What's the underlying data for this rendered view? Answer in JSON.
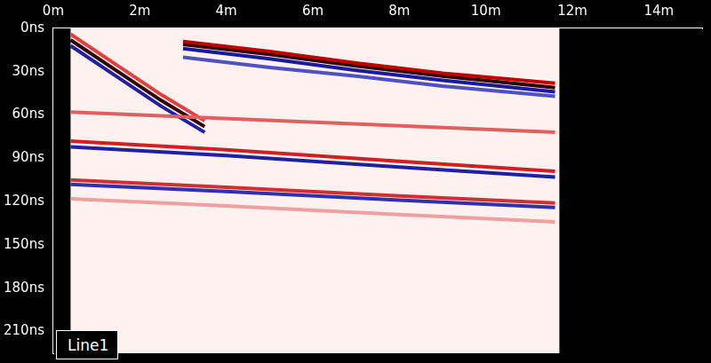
{
  "chart_data": {
    "type": "line",
    "annotation": "Line1",
    "grid": false,
    "xlim": [
      0,
      15
    ],
    "xticks": [
      {
        "value": 0,
        "label": "0m"
      },
      {
        "value": 2,
        "label": "2m"
      },
      {
        "value": 4,
        "label": "4m"
      },
      {
        "value": 6,
        "label": "6m"
      },
      {
        "value": 8,
        "label": "8m"
      },
      {
        "value": 10,
        "label": "10m"
      },
      {
        "value": 12,
        "label": "12m"
      },
      {
        "value": 14,
        "label": "14m"
      }
    ],
    "ylim": [
      0,
      225
    ],
    "yticks": [
      {
        "value": 0,
        "label": "0ns"
      },
      {
        "value": 30,
        "label": "30ns"
      },
      {
        "value": 60,
        "label": "60ns"
      },
      {
        "value": 90,
        "label": "90ns"
      },
      {
        "value": 120,
        "label": "120ns"
      },
      {
        "value": 150,
        "label": "150ns"
      },
      {
        "value": 180,
        "label": "180ns"
      },
      {
        "value": 210,
        "label": "210ns"
      }
    ],
    "trace_range": [
      0.4,
      11.7
    ],
    "series": [
      {
        "color": "#e06060",
        "x": [
          0.4,
          11.6
        ],
        "values": [
          58,
          72
        ]
      },
      {
        "color": "#f0a0a0",
        "x": [
          0.4,
          4,
          8,
          11.6
        ],
        "values": [
          118,
          123,
          129,
          134
        ]
      },
      {
        "color": "#d03030",
        "x": [
          0.4,
          4,
          8,
          11.6
        ],
        "values": [
          105,
          110,
          116,
          121
        ]
      },
      {
        "color": "#3030b0",
        "x": [
          0.4,
          4,
          8,
          11.6
        ],
        "values": [
          108,
          113,
          119,
          124
        ]
      },
      {
        "color": "#d02020",
        "x": [
          0.4,
          4,
          8,
          11.6
        ],
        "values": [
          78,
          84,
          92,
          99
        ]
      },
      {
        "color": "#2020a0",
        "x": [
          0.4,
          4,
          8,
          11.6
        ],
        "values": [
          82,
          88,
          96,
          103
        ]
      },
      {
        "color": "#5050c0",
        "x": [
          3.0,
          5,
          7,
          9,
          11.6
        ],
        "values": [
          20,
          27,
          33,
          40,
          47
        ]
      },
      {
        "color": "#c00000",
        "x": [
          3.0,
          5,
          7,
          9,
          11.6
        ],
        "values": [
          9,
          16,
          24,
          31,
          38
        ]
      },
      {
        "color": "#300000",
        "x": [
          3.0,
          5,
          7,
          9,
          11.6
        ],
        "values": [
          11,
          18,
          26,
          33,
          41
        ]
      },
      {
        "color": "#1a1aa0",
        "x": [
          3.0,
          5,
          7,
          9,
          11.6
        ],
        "values": [
          14,
          21,
          29,
          36,
          44
        ]
      },
      {
        "color": "#e04040",
        "x": [
          0.4,
          1.5,
          2.5,
          3.5
        ],
        "values": [
          4,
          26,
          46,
          64
        ]
      },
      {
        "color": "#300000",
        "x": [
          0.4,
          1.5,
          2.5,
          3.5
        ],
        "values": [
          8,
          30,
          50,
          68
        ]
      },
      {
        "color": "#2020a0",
        "x": [
          0.4,
          1.5,
          2.5,
          3.5
        ],
        "values": [
          12,
          34,
          54,
          72
        ]
      }
    ]
  }
}
